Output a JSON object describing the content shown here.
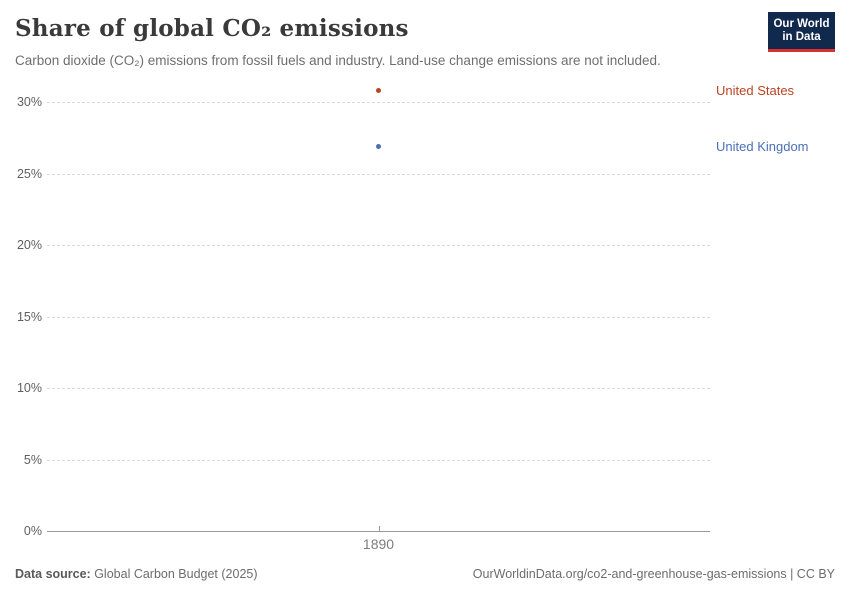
{
  "header": {
    "title": "Share of global CO₂ emissions",
    "subtitle": "Carbon dioxide (CO₂) emissions from fossil fuels and industry. Land-use change emissions are not included.",
    "logo": {
      "line1": "Our World",
      "line2": "in Data",
      "bg_color": "#12294e",
      "accent_color": "#d8322f"
    }
  },
  "chart_data": {
    "type": "scatter",
    "title": "Share of global CO₂ emissions",
    "subtitle": "Carbon dioxide (CO₂) emissions from fossil fuels and industry. Land-use change emissions are not included.",
    "xlabel": "",
    "ylabel": "",
    "ylim": [
      0,
      32
    ],
    "grid": "horizontal-dashed",
    "legend_position": "right-of-plot-entity-labels",
    "yticks": [
      "0%",
      "5%",
      "10%",
      "15%",
      "20%",
      "25%",
      "30%"
    ],
    "xticks": [
      "1890"
    ],
    "series": [
      {
        "name": "United States",
        "color": "#bc4322",
        "x": 1890,
        "y": 30.8
      },
      {
        "name": "United Kingdom",
        "color": "#4a70b5",
        "x": 1890,
        "y": 26.9
      }
    ]
  },
  "footer": {
    "source_label": "Data source:",
    "source_value": " Global Carbon Budget (2025)",
    "license": "OurWorldinData.org/co2-and-greenhouse-gas-emissions | CC BY"
  }
}
